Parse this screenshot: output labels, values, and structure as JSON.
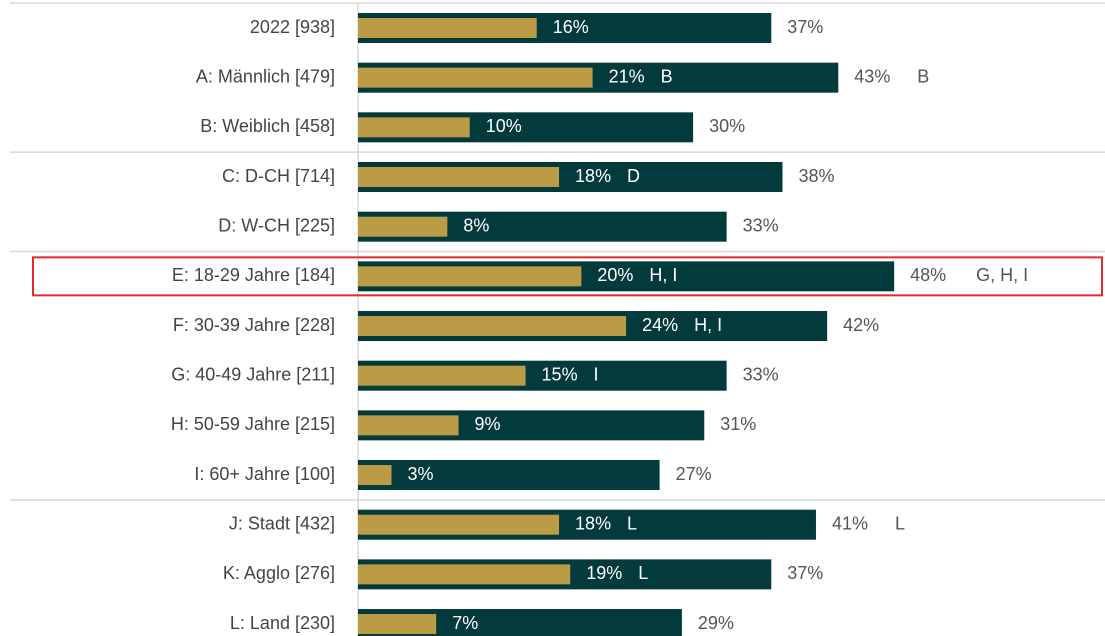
{
  "chart_data": {
    "type": "bar",
    "orientation": "horizontal",
    "categories": [
      "2022 [938]",
      "A: Männlich [479]",
      "B: Weiblich [458]",
      "C: D-CH [714]",
      "D: W-CH [225]",
      "E: 18-29 Jahre [184]",
      "F: 30-39 Jahre [228]",
      "G: 40-49 Jahre [211]",
      "H: 50-59 Jahre [215]",
      "I: 60+ Jahre [100]",
      "J: Stadt [432]",
      "K: Agglo [276]",
      "L: Land [230]"
    ],
    "series": [
      {
        "color": "#033a3c",
        "values": [
          37,
          43,
          30,
          38,
          33,
          48,
          42,
          33,
          31,
          27,
          41,
          37,
          29
        ],
        "value_labels": [
          "37%",
          "43%",
          "30%",
          "38%",
          "33%",
          "48%",
          "42%",
          "33%",
          "31%",
          "27%",
          "41%",
          "37%",
          "29%"
        ],
        "significance": [
          null,
          "B",
          null,
          null,
          null,
          "G, H, I",
          null,
          null,
          null,
          null,
          "L",
          null,
          null
        ]
      },
      {
        "color": "#bb9b46",
        "values": [
          16,
          21,
          10,
          18,
          8,
          20,
          24,
          15,
          9,
          3,
          18,
          19,
          7
        ],
        "value_labels": [
          "16%",
          "21%",
          "10%",
          "18%",
          "8%",
          "20%",
          "24%",
          "15%",
          "9%",
          "3%",
          "18%",
          "19%",
          "7%"
        ],
        "significance": [
          null,
          "B",
          null,
          "D",
          null,
          "H, I",
          "H, I",
          "I",
          null,
          null,
          "L",
          "L",
          null
        ]
      }
    ]
  }
}
